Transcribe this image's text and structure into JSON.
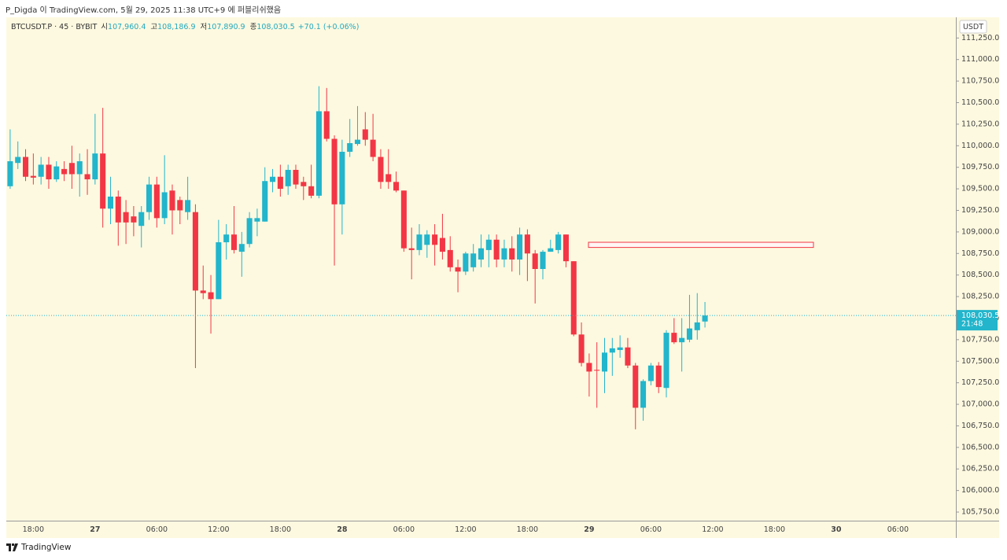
{
  "header": "P_Digda 이 TradingView.com, 5월 29, 2025 11:38 UTC+9 에 퍼블리쉬했음",
  "legend": {
    "symbol": "BTCUSDT.P · 45 · BYBIT",
    "ohlc": [
      {
        "label": "시",
        "value": "107,960.4"
      },
      {
        "label": "고",
        "value": "108,186.9"
      },
      {
        "label": "저",
        "value": "107,890.9"
      },
      {
        "label": "종",
        "value": "108,030.5"
      }
    ],
    "change": "+70.1 (+0.06%)"
  },
  "price_tag": {
    "price": "108,030.5",
    "countdown": "21:48"
  },
  "footer": "TradingView",
  "chart_data": {
    "type": "candlestick",
    "y_unit": "USDT",
    "up_color": "#22b5cb",
    "down_color": "#f23645",
    "categories": [
      null,
      null,
      null,
      "18:00",
      null,
      null,
      null,
      null,
      null,
      null,
      null,
      "27",
      null,
      null,
      null,
      null,
      null,
      null,
      null,
      "06:00",
      null,
      null,
      null,
      null,
      null,
      null,
      null,
      "12:00",
      null,
      null,
      null,
      null,
      null,
      null,
      null,
      "18:00",
      null,
      null,
      null,
      null,
      null,
      null,
      null,
      "28",
      null,
      null,
      null,
      null,
      null,
      null,
      null,
      "06:00",
      null,
      null,
      null,
      null,
      null,
      null,
      null,
      "12:00",
      null,
      null,
      null,
      null,
      null,
      null,
      null,
      "18:00",
      null,
      null,
      null,
      null,
      null,
      null,
      null,
      "29",
      null,
      null,
      null,
      null,
      null,
      null,
      null,
      "06:00",
      null,
      null,
      null,
      null,
      null,
      null,
      null,
      "12:00",
      null,
      null,
      null,
      null,
      null,
      null,
      null,
      "18:00",
      null,
      null,
      null,
      null,
      null,
      null,
      null,
      "30",
      null,
      null,
      null,
      null,
      null,
      null,
      null,
      "06:00",
      null,
      null,
      null,
      null,
      null,
      null,
      null
    ],
    "open": [
      109530,
      109800,
      109870,
      109650,
      109640,
      109780,
      109610,
      109730,
      109800,
      109670,
      109670,
      109610,
      109910,
      109270,
      109410,
      109230,
      109180,
      109070,
      109230,
      109550,
      109160,
      109480,
      109370,
      109230,
      109230,
      108320,
      108300,
      108220,
      108880,
      108970,
      108770,
      108860,
      109120,
      109120,
      109580,
      109640,
      109530,
      109720,
      109580,
      109530,
      109420,
      110400,
      110080,
      109320,
      109930,
      110020,
      110190,
      110070,
      109870,
      109670,
      109580,
      109480,
      108810,
      108790,
      108850,
      108970,
      108930,
      108790,
      108590,
      108540,
      108590,
      108680,
      108790,
      108910,
      108680,
      108810,
      108680,
      108970,
      108750,
      108570,
      108770,
      108790,
      108970,
      108660,
      107810,
      107480,
      107400,
      107380,
      107600,
      107630,
      107660,
      107450,
      106960,
      107270,
      107450,
      107190,
      107830,
      107720,
      107750,
      107860,
      107960.4,
      null,
      null,
      null,
      null,
      null,
      null,
      null,
      null,
      null,
      null,
      null,
      null,
      null,
      null,
      null,
      null,
      null,
      null,
      null,
      null,
      null,
      null,
      null,
      null,
      null,
      null,
      null,
      null,
      null,
      null,
      null,
      null
    ],
    "high": [
      110190,
      110050,
      109960,
      109910,
      109870,
      109870,
      109820,
      109820,
      110000,
      109910,
      109960,
      110370,
      110440,
      109640,
      109480,
      109370,
      109300,
      109300,
      109640,
      109640,
      109890,
      109550,
      109410,
      109640,
      109320,
      108610,
      108500,
      109140,
      109090,
      109300,
      109000,
      109230,
      109270,
      109750,
      109730,
      109780,
      109780,
      109780,
      109640,
      109780,
      110690,
      110670,
      110120,
      110070,
      110310,
      110460,
      110390,
      110370,
      109960,
      109960,
      109700,
      109480,
      109050,
      109090,
      109020,
      109090,
      109210,
      108950,
      108680,
      108770,
      108860,
      108970,
      108970,
      108970,
      108910,
      108950,
      109050,
      109030,
      108790,
      108790,
      108910,
      109000,
      108970,
      108660,
      107950,
      107590,
      107720,
      107770,
      107770,
      107800,
      107770,
      107480,
      107290,
      107480,
      107490,
      107860,
      108000,
      108000,
      108270,
      108290,
      108186.9,
      null,
      null,
      null,
      null,
      null,
      null,
      null,
      null,
      null,
      null,
      null,
      null,
      null,
      null,
      null,
      null,
      null,
      null,
      null,
      null,
      null,
      null,
      null,
      null,
      null,
      null,
      null,
      null,
      null,
      null,
      null,
      null
    ],
    "low": [
      109500,
      109730,
      109590,
      109550,
      109550,
      109500,
      109580,
      109590,
      109500,
      109410,
      109430,
      109550,
      109050,
      109090,
      108840,
      108860,
      108950,
      108820,
      109140,
      109050,
      109090,
      108970,
      109090,
      109140,
      107420,
      108220,
      107820,
      108220,
      108680,
      108750,
      108480,
      108820,
      108950,
      109120,
      109460,
      109410,
      109430,
      109500,
      109370,
      109390,
      109390,
      110050,
      108610,
      108970,
      109870,
      110000,
      110000,
      109820,
      109500,
      109500,
      109460,
      108770,
      108450,
      108730,
      108700,
      108610,
      108680,
      108540,
      108300,
      108500,
      108540,
      108590,
      108590,
      108590,
      108590,
      108540,
      108500,
      108430,
      108170,
      108450,
      108770,
      108750,
      108590,
      107790,
      107440,
      107090,
      106960,
      107130,
      107330,
      107540,
      107420,
      106710,
      106810,
      107220,
      107130,
      107080,
      107700,
      107380,
      107720,
      107750,
      107890.9,
      null,
      null,
      null,
      null,
      null,
      null,
      null,
      null,
      null,
      null,
      null,
      null,
      null,
      null,
      null,
      null,
      null,
      null,
      null,
      null,
      null,
      null,
      null,
      null,
      null,
      null,
      null,
      null,
      null,
      null,
      null,
      null
    ],
    "close": [
      109820,
      109870,
      109640,
      109630,
      109780,
      109610,
      109760,
      109670,
      109670,
      109820,
      109610,
      109910,
      109270,
      109410,
      109110,
      109110,
      109110,
      109230,
      109550,
      109160,
      109460,
      109250,
      109250,
      109370,
      108320,
      108290,
      108220,
      108880,
      108970,
      108790,
      108860,
      109160,
      109160,
      109590,
      109640,
      109500,
      109720,
      109550,
      109530,
      109420,
      110400,
      110080,
      109320,
      109930,
      110030,
      110070,
      110070,
      109870,
      109580,
      109580,
      109480,
      108810,
      108790,
      108970,
      108970,
      108850,
      108770,
      108590,
      108540,
      108750,
      108750,
      108810,
      108910,
      108680,
      108810,
      108680,
      108970,
      108750,
      108570,
      108770,
      108810,
      108970,
      108660,
      107810,
      107480,
      107380,
      107390,
      107600,
      107650,
      107660,
      107450,
      106960,
      107270,
      107450,
      107200,
      107830,
      107720,
      107770,
      107880,
      107950,
      108030.5,
      null,
      null,
      null,
      null,
      null,
      null,
      null,
      null,
      null,
      null,
      null,
      null,
      null,
      null,
      null,
      null,
      null,
      null,
      null,
      null,
      null,
      null,
      null,
      null,
      null,
      null,
      null,
      null,
      null,
      null,
      null,
      null
    ],
    "zone": {
      "top": 108880,
      "bottom": 108820,
      "color": "#f23645"
    },
    "ylim": [
      105650,
      111490
    ],
    "yticks": [
      {
        "value": 111250,
        "label": "111,250.0"
      },
      {
        "value": 111000,
        "label": "111,000.0"
      },
      {
        "value": 110750,
        "label": "110,750.0"
      },
      {
        "value": 110500,
        "label": "110,500.0"
      },
      {
        "value": 110250,
        "label": "110,250.0"
      },
      {
        "value": 110000,
        "label": "110,000.0"
      },
      {
        "value": 109750,
        "label": "109,750.0"
      },
      {
        "value": 109500,
        "label": "109,500.0"
      },
      {
        "value": 109250,
        "label": "109,250.0"
      },
      {
        "value": 109000,
        "label": "109,000.0"
      },
      {
        "value": 108750,
        "label": "108,750.0"
      },
      {
        "value": 108500,
        "label": "108,500.0"
      },
      {
        "value": 108250,
        "label": "108,250.0"
      },
      {
        "value": 108000,
        "label": "108,000.0"
      },
      {
        "value": 107750,
        "label": "107,750.0"
      },
      {
        "value": 107500,
        "label": "107,500.0"
      },
      {
        "value": 107250,
        "label": "107,250.0"
      },
      {
        "value": 107000,
        "label": "107,000.0"
      },
      {
        "value": 106750,
        "label": "106,750.0"
      },
      {
        "value": 106500,
        "label": "106,500.0"
      },
      {
        "value": 106250,
        "label": "106,250.0"
      },
      {
        "value": 106000,
        "label": "106,000.0"
      },
      {
        "value": 105750,
        "label": "105,750.0"
      }
    ],
    "grid": false
  }
}
